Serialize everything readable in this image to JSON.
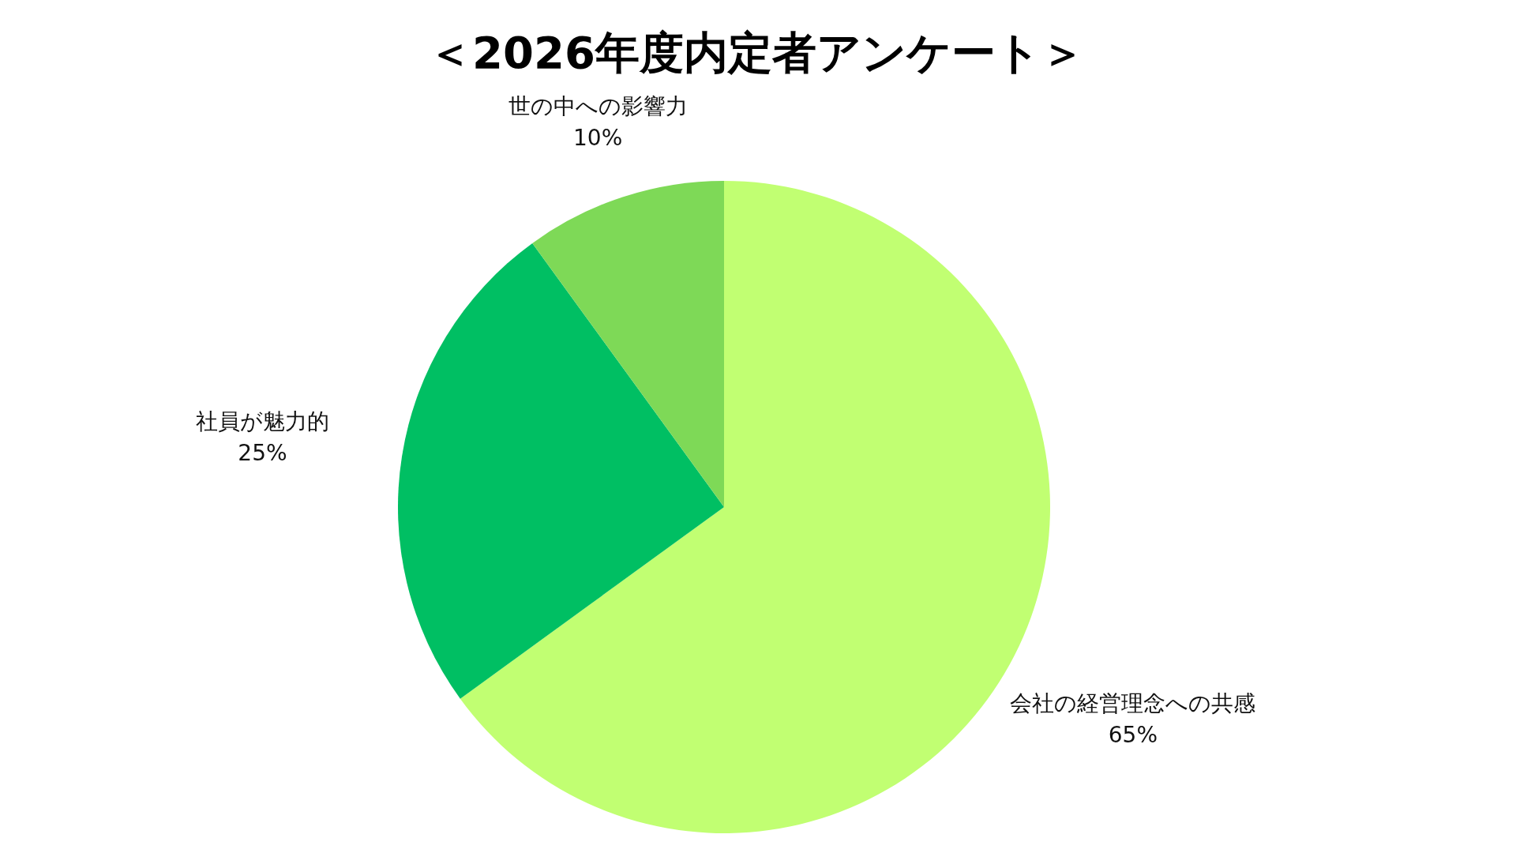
{
  "chart_data": {
    "type": "pie",
    "title": "＜2026年度内定者アンケート＞",
    "categories": [
      "会社の経営理念への共感",
      "社員が魅力的",
      "世の中への影響力"
    ],
    "values": [
      65,
      25,
      10
    ],
    "value_labels": [
      "65%",
      "25%",
      "10%"
    ],
    "colors": [
      "#c1ff72",
      "#00bf63",
      "#7ed957"
    ],
    "legend": false
  }
}
